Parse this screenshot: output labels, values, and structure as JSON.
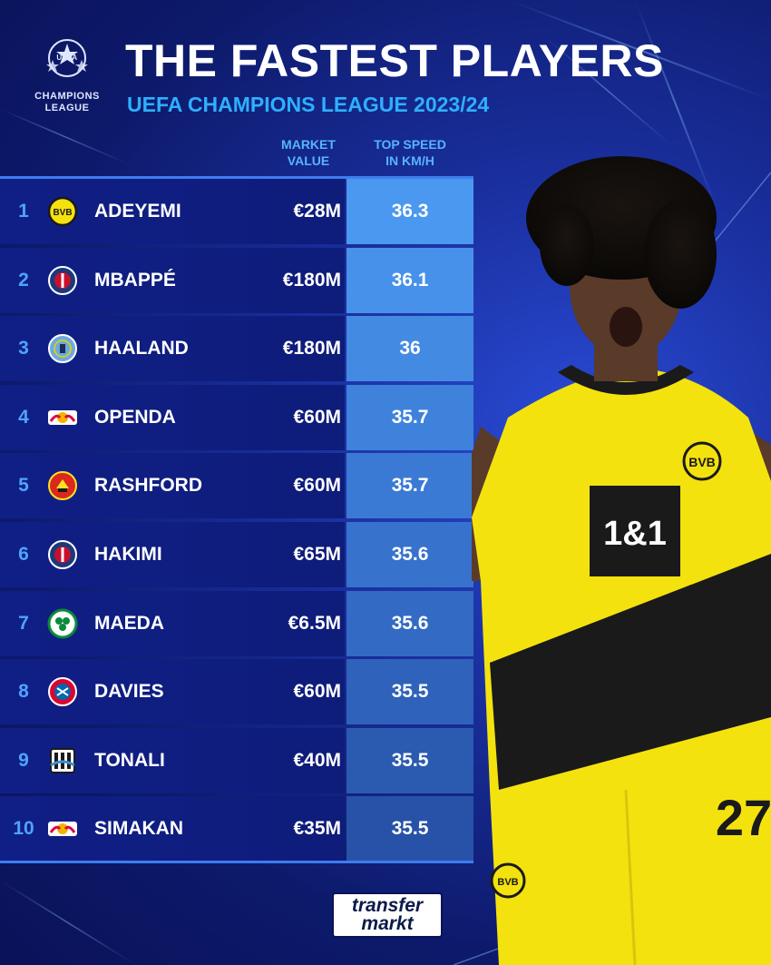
{
  "header": {
    "title": "THE FASTEST PLAYERS",
    "subtitle": "UEFA CHAMPIONS LEAGUE 2023/24",
    "logo_line1": "UEFA",
    "logo_line2": "CHAMPIONS",
    "logo_line3": "LEAGUE"
  },
  "columns": {
    "market_line1": "MARKET",
    "market_line2": "VALUE",
    "speed_line1": "TOP SPEED",
    "speed_line2": "IN KM/H"
  },
  "rows": [
    {
      "rank": "1",
      "name": "ADEYEMI",
      "market": "€28M",
      "speed": "36.3",
      "crest_icon": "bvb-crest-icon"
    },
    {
      "rank": "2",
      "name": "MBAPPÉ",
      "market": "€180M",
      "speed": "36.1",
      "crest_icon": "psg-crest-icon"
    },
    {
      "rank": "3",
      "name": "HAALAND",
      "market": "€180M",
      "speed": "36",
      "crest_icon": "man-city-crest-icon"
    },
    {
      "rank": "4",
      "name": "OPENDA",
      "market": "€60M",
      "speed": "35.7",
      "crest_icon": "rb-leipzig-crest-icon"
    },
    {
      "rank": "5",
      "name": "RASHFORD",
      "market": "€60M",
      "speed": "35.7",
      "crest_icon": "man-united-crest-icon"
    },
    {
      "rank": "6",
      "name": "HAKIMI",
      "market": "€65M",
      "speed": "35.6",
      "crest_icon": "psg-crest-icon"
    },
    {
      "rank": "7",
      "name": "MAEDA",
      "market": "€6.5M",
      "speed": "35.6",
      "crest_icon": "celtic-crest-icon"
    },
    {
      "rank": "8",
      "name": "DAVIES",
      "market": "€60M",
      "speed": "35.5",
      "crest_icon": "bayern-crest-icon"
    },
    {
      "rank": "9",
      "name": "TONALI",
      "market": "€40M",
      "speed": "35.5",
      "crest_icon": "newcastle-crest-icon"
    },
    {
      "rank": "10",
      "name": "SIMAKAN",
      "market": "€35M",
      "speed": "35.5",
      "crest_icon": "rb-leipzig-crest-icon"
    }
  ],
  "colors": {
    "speed_cells": [
      "#4a98f0",
      "#4791ea",
      "#438ae3",
      "#3f82dc",
      "#3b7ad4",
      "#3772cc",
      "#336ac3",
      "#2f62ba",
      "#2b5ab1",
      "#2752a8"
    ],
    "accent": "#2eb0ff",
    "rank": "#4fa3ff"
  },
  "footer": {
    "brand_line1": "transfer",
    "brand_line2": "markt"
  }
}
